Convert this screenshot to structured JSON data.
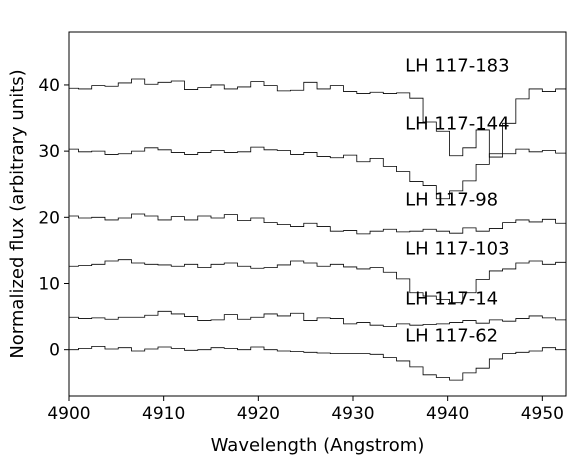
{
  "chart_data": {
    "type": "line",
    "step": true,
    "xlabel": "Wavelength (Angstrom)",
    "ylabel": "Normalized flux (arbitrary units)",
    "xlim": [
      4900,
      4952.5
    ],
    "ylim": [
      -7,
      48
    ],
    "xticks": [
      "4900",
      "4910",
      "4920",
      "4930",
      "4940",
      "4950"
    ],
    "yticks": [
      "0",
      "10",
      "20",
      "30",
      "40"
    ],
    "grid": false,
    "line_color": "#000000",
    "bin_width": 1.4,
    "x_start": 4899.6,
    "series": [
      {
        "name": "LH 117-183",
        "label_at": [
          4935.5,
          42
        ],
        "values": [
          39.5,
          39.4,
          39.9,
          39.8,
          40.3,
          40.9,
          40.1,
          40.4,
          40.6,
          39.3,
          39.6,
          40.0,
          39.4,
          39.7,
          40.5,
          39.9,
          39.1,
          39.2,
          40.4,
          39.4,
          39.9,
          39.0,
          38.7,
          38.9,
          38.7,
          38.8,
          38.0,
          34.4,
          33.0,
          29.3,
          30.5,
          33.2,
          29.1,
          34.2,
          37.9,
          39.4,
          39.0,
          39.4,
          40.3,
          39.4,
          40.3,
          39.7,
          40.0,
          39.2,
          38.9,
          39.5,
          39.9,
          39.4,
          39.6,
          40.0,
          40.1,
          40.5,
          40.6,
          40.0,
          39.4,
          40.5,
          40.0,
          39.7
        ]
      },
      {
        "name": "LH 117-144",
        "label_at": [
          4935.5,
          33.3
        ],
        "values": [
          30.3,
          29.9,
          30.0,
          29.5,
          29.6,
          30.0,
          30.5,
          30.2,
          29.8,
          29.5,
          29.8,
          30.1,
          29.8,
          29.9,
          30.6,
          30.2,
          30.1,
          29.5,
          29.8,
          29.2,
          29.0,
          29.4,
          28.4,
          28.9,
          27.7,
          26.9,
          25.4,
          24.8,
          22.8,
          24.0,
          25.5,
          28.0,
          29.6,
          29.6,
          30.3,
          29.9,
          30.1,
          29.7,
          29.8,
          30.3,
          30.1,
          29.8,
          30.4,
          29.7,
          30.2,
          29.9,
          29.6,
          30.0,
          30.5,
          30.2,
          29.7,
          30.8,
          30.6,
          30.1,
          29.8,
          30.3,
          30.1,
          29.9
        ]
      },
      {
        "name": "LH 117-98",
        "label_at": [
          4935.5,
          21.8
        ],
        "values": [
          20.2,
          19.9,
          20.0,
          19.6,
          19.9,
          20.5,
          20.2,
          19.6,
          20.1,
          19.6,
          20.2,
          19.9,
          20.4,
          19.5,
          19.9,
          19.2,
          18.9,
          18.6,
          19.1,
          18.6,
          17.9,
          18.0,
          17.5,
          17.9,
          18.2,
          17.8,
          17.9,
          18.2,
          17.9,
          17.6,
          18.4,
          17.9,
          18.3,
          19.2,
          19.6,
          19.3,
          19.7,
          19.1,
          20.2,
          19.4,
          19.5,
          20.1,
          19.8,
          20.5,
          19.7,
          20.2,
          19.4,
          19.9,
          20.3,
          19.6,
          19.9,
          20.1,
          20.0,
          19.5,
          20.2,
          19.9,
          20.8,
          20.0
        ]
      },
      {
        "name": "LH 117-103",
        "label_at": [
          4935.5,
          14.4
        ],
        "values": [
          12.6,
          12.7,
          12.9,
          13.4,
          13.6,
          13.1,
          12.9,
          12.8,
          12.6,
          12.9,
          12.4,
          12.9,
          13.1,
          12.6,
          12.3,
          12.4,
          12.8,
          13.4,
          13.1,
          12.6,
          12.9,
          12.5,
          12.2,
          12.4,
          11.7,
          10.7,
          8.6,
          8.1,
          7.6,
          7.1,
          8.6,
          10.6,
          11.9,
          12.2,
          13.1,
          13.4,
          12.9,
          13.2,
          12.6,
          12.9,
          12.3,
          12.9,
          13.1,
          12.4,
          12.7,
          12.5,
          12.8,
          13.2,
          12.6,
          12.8,
          13.4,
          12.9,
          13.1,
          12.7,
          12.9,
          13.2,
          13.4,
          13.3
        ]
      },
      {
        "name": "LH 117-14",
        "label_at": [
          4935.5,
          6.8
        ],
        "values": [
          4.9,
          4.7,
          4.8,
          4.6,
          4.9,
          4.9,
          5.2,
          5.8,
          5.4,
          5.0,
          4.4,
          4.5,
          5.3,
          4.6,
          4.9,
          5.4,
          5.1,
          5.5,
          4.4,
          4.8,
          4.7,
          3.9,
          4.1,
          3.7,
          3.5,
          3.9,
          3.7,
          3.8,
          3.9,
          4.1,
          4.4,
          4.0,
          4.5,
          4.3,
          4.7,
          5.1,
          4.8,
          4.5,
          5.0,
          4.7,
          4.6,
          4.5,
          4.8,
          4.9,
          4.5,
          4.7,
          5.0,
          4.4,
          5.1,
          5.8,
          4.9,
          4.7,
          4.4,
          4.6,
          4.5,
          4.7,
          4.9,
          4.3
        ]
      },
      {
        "name": "LH 117-62",
        "label_at": [
          4935.5,
          1.2
        ],
        "values": [
          0.0,
          0.2,
          0.5,
          0.1,
          0.3,
          -0.2,
          0.1,
          0.4,
          0.2,
          -0.1,
          0.0,
          0.3,
          0.2,
          0.0,
          0.4,
          0.0,
          -0.2,
          -0.3,
          -0.4,
          -0.5,
          -0.6,
          -0.6,
          -0.6,
          -0.7,
          -1.2,
          -1.7,
          -2.6,
          -3.8,
          -4.2,
          -4.6,
          -3.5,
          -2.8,
          -1.4,
          -0.6,
          -0.4,
          -0.2,
          0.3,
          0.0,
          0.4,
          0.0,
          -0.2,
          0.2,
          -0.1,
          0.3,
          0.0,
          0.2,
          -0.3,
          0.1,
          -0.1,
          0.3,
          0.0,
          0.2,
          -0.1,
          0.1,
          0.4,
          0.2,
          0.3,
          0.0
        ]
      }
    ]
  }
}
